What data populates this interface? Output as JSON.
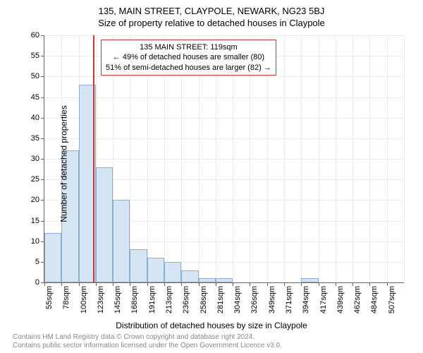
{
  "title_main": "135, MAIN STREET, CLAYPOLE, NEWARK, NG23 5BJ",
  "title_sub": "Size of property relative to detached houses in Claypole",
  "y_axis_label": "Number of detached properties",
  "x_axis_label": "Distribution of detached houses by size in Claypole",
  "chart": {
    "type": "histogram",
    "ylim": [
      0,
      60
    ],
    "ytick_step": 5,
    "x_min": 55,
    "x_step": 22.6,
    "x_count": 21,
    "x_unit": "sqm",
    "bar_color": "#d6e5f4",
    "bar_border_color": "#8fadd1",
    "grid_color": "#ebebeb",
    "axis_color": "#666666",
    "background": "#ffffff",
    "marker_color": "#cc3333",
    "values": [
      12,
      32,
      48,
      28,
      20,
      8,
      6,
      5,
      3,
      1,
      1,
      0,
      0,
      0,
      0,
      1,
      0,
      0,
      0,
      0
    ],
    "marker_xvalue": 119
  },
  "annotation": {
    "line1": "135 MAIN STREET: 119sqm",
    "line2": "← 49% of detached houses are smaller (80)",
    "line3": "51% of semi-detached houses are larger (82) →"
  },
  "footnote": {
    "line1": "Contains HM Land Registry data © Crown copyright and database right 2024.",
    "line2": "Contains public sector information licensed under the Open Government Licence v3.0."
  }
}
